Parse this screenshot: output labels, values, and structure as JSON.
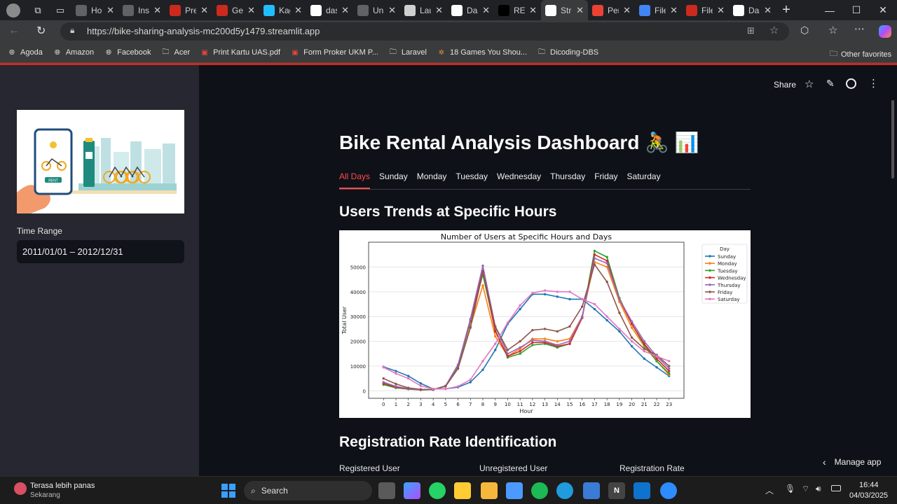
{
  "browser": {
    "tabs": [
      {
        "title": "Hor",
        "icon": "g-icon",
        "color": "#5f6368"
      },
      {
        "title": "Inst",
        "icon": "g-icon",
        "color": "#5f6368"
      },
      {
        "title": "Pre",
        "icon": "crown-icon",
        "color": "#cc2a1e"
      },
      {
        "title": "Get",
        "icon": "crown-icon",
        "color": "#cc2a1e"
      },
      {
        "title": "Kag",
        "icon": "k-icon",
        "color": "#20beff"
      },
      {
        "title": "das",
        "icon": "crown-icon",
        "color": "#ffffff"
      },
      {
        "title": "Uni",
        "icon": "g-icon",
        "color": "#5f6368"
      },
      {
        "title": "Lau",
        "icon": "globe-icon",
        "color": "#cfcfcf"
      },
      {
        "title": "Das",
        "icon": "crown-icon",
        "color": "#ffffff"
      },
      {
        "title": "REA",
        "icon": "github-icon",
        "color": "#000000"
      },
      {
        "title": "Stre",
        "icon": "crown-icon",
        "color": "#ffffff",
        "active": true
      },
      {
        "title": "Per",
        "icon": "m-icon",
        "color": "#ea4335"
      },
      {
        "title": "File",
        "icon": "search-icon",
        "color": "#4285f4"
      },
      {
        "title": "File",
        "icon": "crown-icon",
        "color": "#cc2a1e"
      },
      {
        "title": "Das",
        "icon": "crown-icon",
        "color": "#ffffff"
      }
    ],
    "url": "https://bike-sharing-analysis-mc200d5y1479.streamlit.app",
    "bookmarks": [
      {
        "label": "Agoda",
        "icon": "globe-icon"
      },
      {
        "label": "Amazon",
        "icon": "globe-icon"
      },
      {
        "label": "Facebook",
        "icon": "globe-icon"
      },
      {
        "label": "Acer",
        "icon": "folder-icon"
      },
      {
        "label": "Print Kartu UAS.pdf",
        "icon": "pdf-icon"
      },
      {
        "label": "Form Proker UKM P...",
        "icon": "pdf-icon"
      },
      {
        "label": "Laravel",
        "icon": "folder-icon"
      },
      {
        "label": "18 Games You Shou...",
        "icon": "game-icon"
      },
      {
        "label": "Dicoding-DBS",
        "icon": "folder-icon"
      }
    ],
    "other_favorites": "Other favorites"
  },
  "sidebar": {
    "image_caption": "RENT",
    "time_range_label": "Time Range",
    "time_range_value": "2011/01/01 – 2012/12/31"
  },
  "header": {
    "share_label": "Share"
  },
  "main": {
    "title": "Bike Rental Analysis Dashboard 🚴 📊",
    "tabs": [
      "All Days",
      "Sunday",
      "Monday",
      "Tuesday",
      "Wednesday",
      "Thursday",
      "Friday",
      "Saturday"
    ],
    "section1_title": "Users Trends at Specific Hours",
    "section2_title": "Registration Rate Identification",
    "metrics": [
      {
        "label": "Registered User"
      },
      {
        "label": "Unregistered User"
      },
      {
        "label": "Registration Rate"
      }
    ],
    "manage_app": "Manage app"
  },
  "chart_data": {
    "type": "line",
    "title": "Number of Users at Specific Hours and Days",
    "xlabel": "Hour",
    "ylabel": "Total User",
    "x": [
      0,
      1,
      2,
      3,
      4,
      5,
      6,
      7,
      8,
      9,
      10,
      11,
      12,
      13,
      14,
      15,
      16,
      17,
      18,
      19,
      20,
      21,
      22,
      23
    ],
    "ylim": [
      -3000,
      60000
    ],
    "yticks": [
      0,
      10000,
      20000,
      30000,
      40000,
      50000
    ],
    "grid": true,
    "legend_title": "Day",
    "legend_position": "top-right",
    "series": [
      {
        "name": "Sunday",
        "color": "#1f77b4",
        "values": [
          9700,
          8000,
          6000,
          3000,
          800,
          800,
          1500,
          3500,
          8500,
          16500,
          27000,
          33000,
          39000,
          39000,
          38000,
          37000,
          37000,
          33000,
          28500,
          24000,
          18000,
          13000,
          9500,
          6000
        ]
      },
      {
        "name": "Monday",
        "color": "#ff7f0e",
        "values": [
          3000,
          1500,
          800,
          500,
          500,
          2000,
          9000,
          26000,
          42500,
          22000,
          14000,
          17000,
          21000,
          21000,
          20000,
          21000,
          30000,
          52000,
          50000,
          36000,
          25500,
          18000,
          12000,
          6500
        ]
      },
      {
        "name": "Tuesday",
        "color": "#2ca02c",
        "values": [
          2500,
          1200,
          700,
          400,
          500,
          2000,
          10000,
          28000,
          47000,
          24500,
          13500,
          15000,
          18500,
          19000,
          17500,
          19000,
          29500,
          56500,
          54000,
          37500,
          27000,
          18500,
          12000,
          7000
        ]
      },
      {
        "name": "Wednesday",
        "color": "#d62728",
        "values": [
          3000,
          1500,
          800,
          400,
          500,
          2000,
          10500,
          28500,
          48500,
          24000,
          14000,
          16000,
          19500,
          19500,
          18000,
          19000,
          29500,
          55000,
          52500,
          37000,
          27000,
          19000,
          13000,
          8000
        ]
      },
      {
        "name": "Thursday",
        "color": "#9467bd",
        "values": [
          3500,
          1800,
          900,
          500,
          500,
          2000,
          10500,
          29000,
          50500,
          26000,
          15000,
          17500,
          20500,
          20000,
          18500,
          20000,
          30000,
          53500,
          51500,
          37000,
          28000,
          20000,
          14000,
          9000
        ]
      },
      {
        "name": "Friday",
        "color": "#8c564b",
        "values": [
          5000,
          2800,
          1200,
          600,
          500,
          1800,
          9000,
          25500,
          48000,
          26000,
          16500,
          20000,
          24500,
          25000,
          24000,
          26000,
          34000,
          51000,
          44000,
          31500,
          21500,
          17000,
          14500,
          10000
        ]
      },
      {
        "name": "Saturday",
        "color": "#e377c2",
        "values": [
          9500,
          7000,
          5000,
          2000,
          800,
          800,
          1800,
          4500,
          12000,
          19000,
          27500,
          34500,
          39500,
          40500,
          40000,
          40000,
          37000,
          35000,
          30000,
          25000,
          20000,
          16000,
          14000,
          12000
        ]
      }
    ]
  }
}
